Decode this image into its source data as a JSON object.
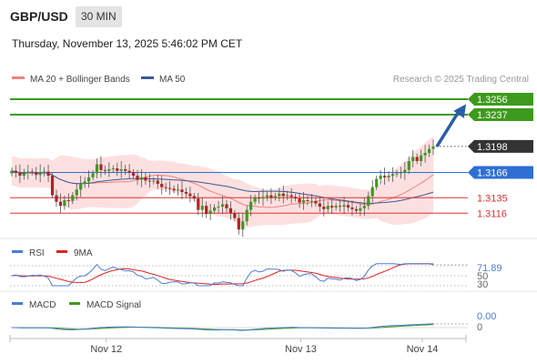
{
  "header": {
    "symbol": "GBP/USD",
    "timeframe": "30 MIN",
    "datetime": "Thursday, November 13, 2025 5:46:02 PM CET"
  },
  "legend": {
    "ma20_label": "MA 20 + Bollinger Bands",
    "ma50_label": "MA 50",
    "ma20_color": "#f08080",
    "ma50_color": "#3b5998",
    "credit": "Research © 2025 Trading Central"
  },
  "chart_data": {
    "type": "candlestick",
    "price_range": [
      1.3085,
      1.3275
    ],
    "levels": [
      {
        "value": 1.3256,
        "label": "1.3256",
        "kind": "target",
        "color": "#3d9a1c"
      },
      {
        "value": 1.3237,
        "label": "1.3237",
        "kind": "target",
        "color": "#3d9a1c"
      },
      {
        "value": 1.3198,
        "label": "1.3198",
        "kind": "last",
        "color": "#333333"
      },
      {
        "value": 1.3166,
        "label": "1.3166",
        "kind": "pivot",
        "color": "#2e6fd6"
      },
      {
        "value": 1.3135,
        "label": "1.3135",
        "kind": "support",
        "color": "#e03030"
      },
      {
        "value": 1.3116,
        "label": "1.3116",
        "kind": "support",
        "color": "#e03030"
      }
    ],
    "closes": [
      1.3168,
      1.3166,
      1.3162,
      1.3165,
      1.3167,
      1.3166,
      1.3163,
      1.3166,
      1.3167,
      1.3162,
      1.3138,
      1.313,
      1.3125,
      1.3132,
      1.3131,
      1.3138,
      1.3145,
      1.3152,
      1.3155,
      1.316,
      1.3165,
      1.3176,
      1.3169,
      1.3168,
      1.317,
      1.3171,
      1.3168,
      1.317,
      1.3168,
      1.3166,
      1.3162,
      1.3157,
      1.316,
      1.3156,
      1.3155,
      1.3156,
      1.3152,
      1.3148,
      1.3147,
      1.3146,
      1.3144,
      1.3145,
      1.3142,
      1.314,
      1.3137,
      1.3134,
      1.312,
      1.3125,
      1.3115,
      1.3119,
      1.3123,
      1.3124,
      1.3127,
      1.3122,
      1.3116,
      1.311,
      1.3096,
      1.3106,
      1.312,
      1.313,
      1.3135,
      1.3134,
      1.3136,
      1.3138,
      1.3135,
      1.3137,
      1.314,
      1.3137,
      1.3138,
      1.3136,
      1.3134,
      1.3129,
      1.3132,
      1.3131,
      1.3131,
      1.3128,
      1.3124,
      1.3121,
      1.3125,
      1.3123,
      1.3125,
      1.3124,
      1.3126,
      1.3123,
      1.3121,
      1.3119,
      1.3122,
      1.3125,
      1.3137,
      1.3148,
      1.3158,
      1.3162,
      1.316,
      1.3162,
      1.3164,
      1.3165,
      1.3166,
      1.3169,
      1.318,
      1.3185,
      1.318,
      1.3187,
      1.319,
      1.3195,
      1.3198
    ],
    "x_ticks": [
      {
        "label": "Nov 12",
        "index": 26
      },
      {
        "label": "Nov 13",
        "index": 74
      },
      {
        "label": "Nov 14",
        "index": 104
      }
    ],
    "projection": {
      "from_index": 104,
      "from_value": 1.3198,
      "to_value": 1.325
    }
  },
  "rsi_panel": {
    "label": "RSI",
    "ma_label": "9MA",
    "rsi_color": "#4b7bd4",
    "ma_color": "#e02020",
    "value_label": "71.89",
    "level_70": "70",
    "level_50": "50",
    "level_30": "30"
  },
  "macd_panel": {
    "label": "MACD",
    "signal_label": "MACD Signal",
    "macd_color": "#4b7bd4",
    "signal_color": "#3d9a1c",
    "value_label": "0.00",
    "zero_label": "0"
  }
}
